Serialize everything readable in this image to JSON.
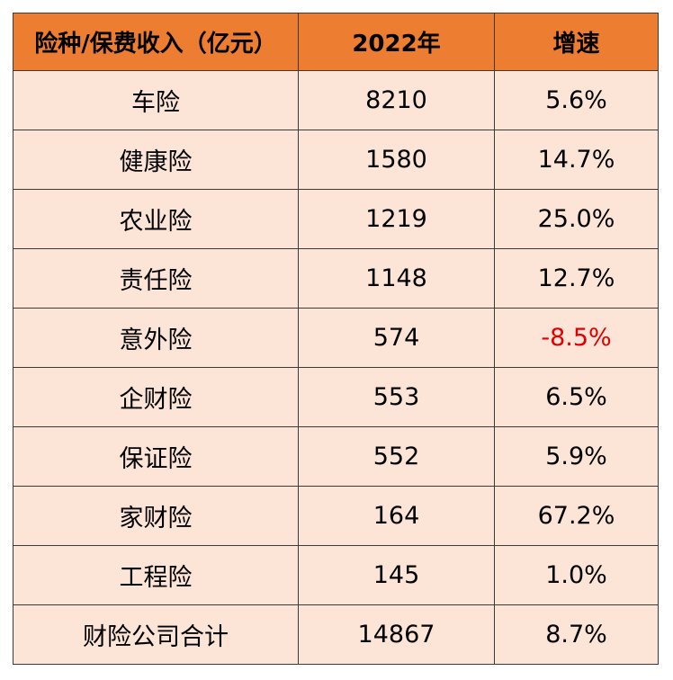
{
  "colors": {
    "header_bg": "#ED7D31",
    "row_bg": "#FCE4D6",
    "border": "#3a3a3a",
    "negative_text": "#E00000"
  },
  "chart_data": {
    "type": "table",
    "columns": [
      "险种/保费收入（亿元）",
      "2022年",
      "增速"
    ],
    "rows": [
      [
        "车险",
        "8210",
        "5.6%"
      ],
      [
        "健康险",
        "1580",
        "14.7%"
      ],
      [
        "农业险",
        "1219",
        "25.0%"
      ],
      [
        "责任险",
        "1148",
        "12.7%"
      ],
      [
        "意外险",
        "574",
        "-8.5%"
      ],
      [
        "企财险",
        "553",
        "6.5%"
      ],
      [
        "保证险",
        "552",
        "5.9%"
      ],
      [
        "家财险",
        "164",
        "67.2%"
      ],
      [
        "工程险",
        "145",
        "1.0%"
      ],
      [
        "财险公司合计",
        "14867",
        "8.7%"
      ]
    ],
    "negative_values_color": "#E00000"
  }
}
